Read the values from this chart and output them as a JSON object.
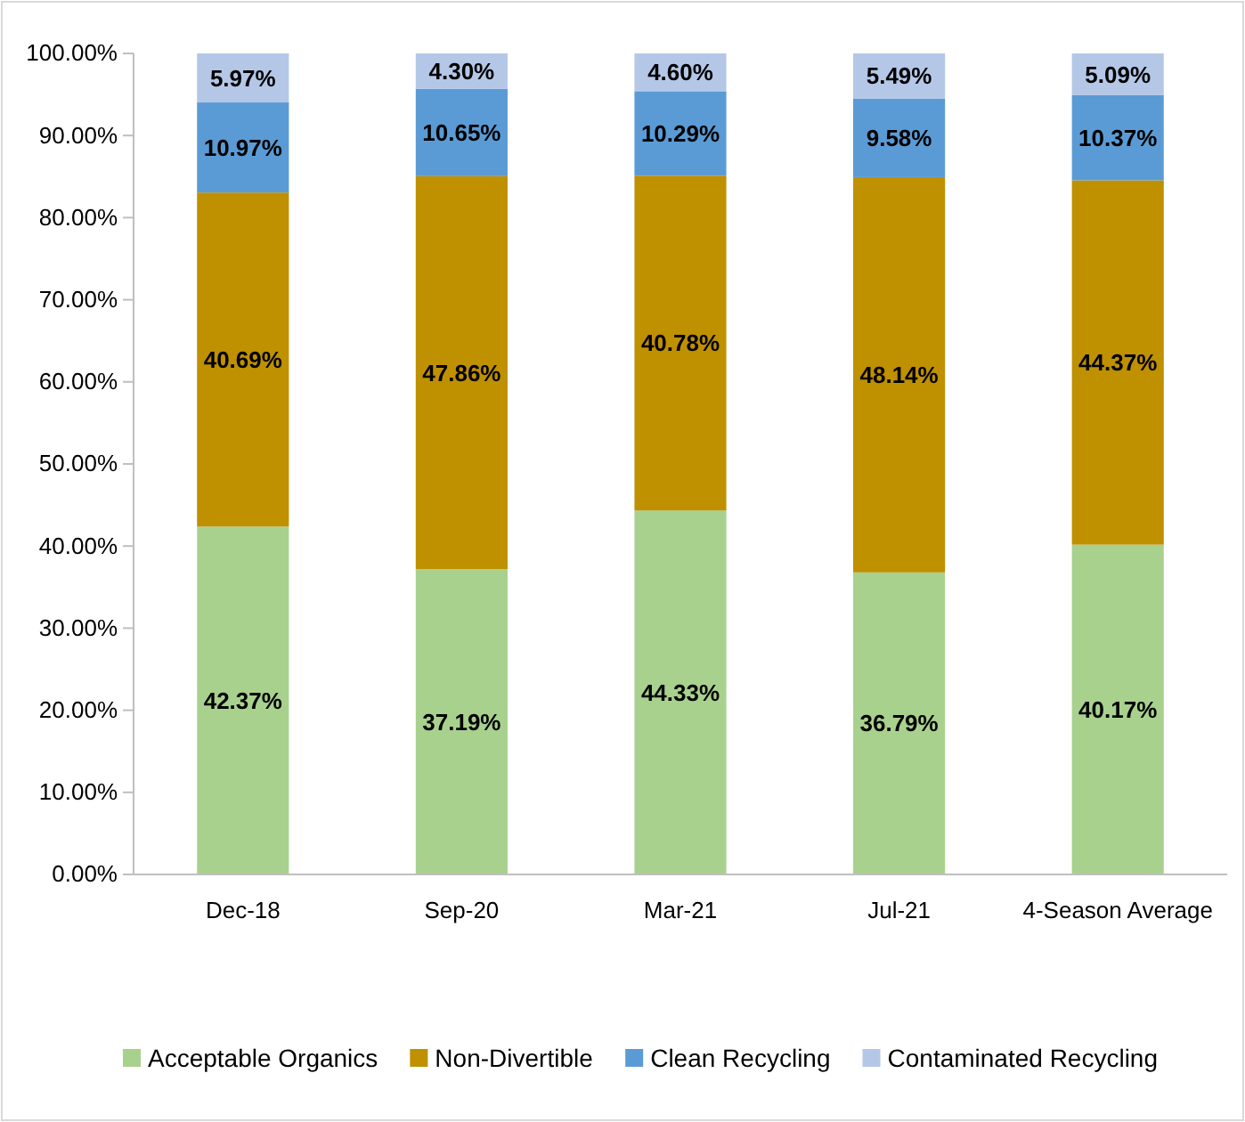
{
  "chart_data": {
    "type": "bar",
    "stacked": true,
    "categories": [
      "Dec-18",
      "Sep-20",
      "Mar-21",
      "Jul-21",
      "4-Season Average"
    ],
    "series": [
      {
        "name": "Acceptable Organics",
        "color": "#a9d18e",
        "values": [
          42.37,
          37.19,
          44.33,
          36.79,
          40.17
        ],
        "value_labels": [
          "42.37%",
          "37.19%",
          "44.33%",
          "36.79%",
          "40.17%"
        ]
      },
      {
        "name": "Non-Divertible",
        "color": "#bf9000",
        "values": [
          40.69,
          47.86,
          40.78,
          48.14,
          44.37
        ],
        "value_labels": [
          "40.69%",
          "47.86%",
          "40.78%",
          "48.14%",
          "44.37%"
        ]
      },
      {
        "name": "Clean Recycling",
        "color": "#5b9bd5",
        "values": [
          10.97,
          10.65,
          10.29,
          9.58,
          10.37
        ],
        "value_labels": [
          "10.97%",
          "10.65%",
          "10.29%",
          "9.58%",
          "10.37%"
        ]
      },
      {
        "name": "Contaminated Recycling",
        "color": "#b4c7e7",
        "values": [
          5.97,
          4.3,
          4.6,
          5.49,
          5.09
        ],
        "value_labels": [
          "5.97%",
          "4.30%",
          "4.60%",
          "5.49%",
          "5.09%"
        ]
      }
    ],
    "ylim": [
      0,
      100
    ],
    "yticks": [
      {
        "value": 0,
        "label": "0.00%"
      },
      {
        "value": 10,
        "label": "10.00%"
      },
      {
        "value": 20,
        "label": "20.00%"
      },
      {
        "value": 30,
        "label": "30.00%"
      },
      {
        "value": 40,
        "label": "40.00%"
      },
      {
        "value": 50,
        "label": "50.00%"
      },
      {
        "value": 60,
        "label": "60.00%"
      },
      {
        "value": 70,
        "label": "70.00%"
      },
      {
        "value": 80,
        "label": "80.00%"
      },
      {
        "value": 90,
        "label": "90.00%"
      },
      {
        "value": 100,
        "label": "100.00%"
      }
    ],
    "grid": false,
    "legend": "bottom"
  }
}
